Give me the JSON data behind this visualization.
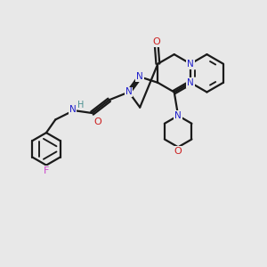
{
  "bg_color": "#e8e8e8",
  "bond_color": "#1a1a1a",
  "N_color": "#2020cc",
  "O_color": "#cc2020",
  "F_color": "#cc44cc",
  "H_color": "#4a9090",
  "line_width": 1.6,
  "figsize": [
    3.0,
    3.0
  ],
  "dpi": 100,
  "xlim": [
    0,
    10
  ],
  "ylim": [
    0,
    10
  ]
}
